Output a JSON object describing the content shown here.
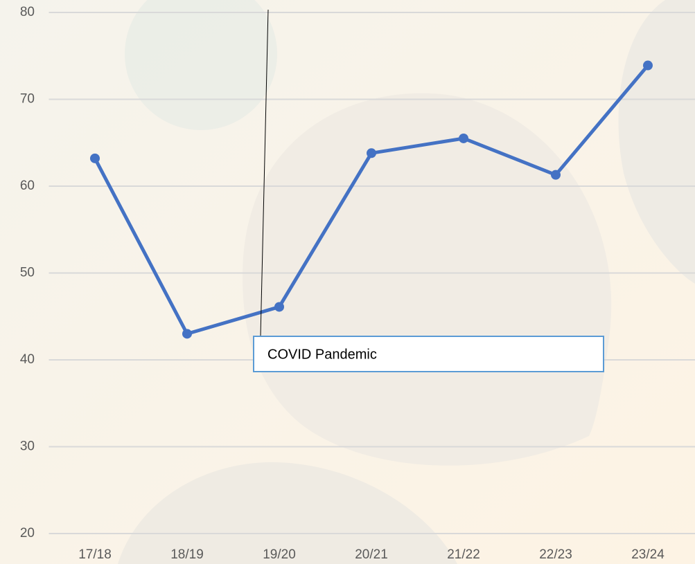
{
  "chart_data": {
    "type": "line",
    "categories": [
      "17/18",
      "18/19",
      "19/20",
      "20/21",
      "21/22",
      "22/23",
      "23/24"
    ],
    "values": [
      63.2,
      43.0,
      46.1,
      63.8,
      65.5,
      61.3,
      73.9
    ],
    "color": "#4472c4",
    "ylim": [
      20,
      80
    ],
    "yticks": [
      20,
      30,
      40,
      50,
      60,
      70,
      80
    ],
    "grid": true,
    "annotation": "COVID Pandemic"
  }
}
